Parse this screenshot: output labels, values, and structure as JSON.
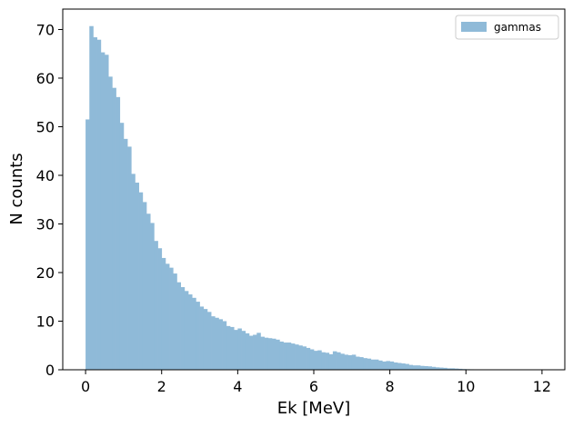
{
  "chart_data": {
    "type": "bar",
    "title": "",
    "xlabel": "Ek [MeV]",
    "ylabel": "N counts",
    "xlim": [
      -0.6,
      12.6
    ],
    "ylim": [
      0,
      74.2
    ],
    "xticks": [
      "0",
      "2",
      "4",
      "6",
      "8",
      "10",
      "12"
    ],
    "yticks": [
      "0",
      "10",
      "20",
      "30",
      "40",
      "50",
      "60",
      "70"
    ],
    "grid": false,
    "legend_position": "top-right",
    "bin_width": 0.1,
    "series": [
      {
        "name": "gammas",
        "color": "#8fbad8",
        "bins_start": 0.0,
        "values": [
          51.5,
          70.7,
          68.4,
          67.9,
          65.3,
          64.8,
          60.3,
          58.0,
          56.1,
          50.8,
          47.5,
          45.9,
          40.3,
          38.5,
          36.5,
          34.5,
          32.1,
          30.2,
          26.5,
          25.0,
          23.0,
          21.8,
          21.0,
          19.8,
          18.0,
          17.0,
          16.2,
          15.5,
          14.8,
          14.0,
          13.0,
          12.5,
          11.9,
          11.0,
          10.7,
          10.4,
          10.0,
          9.0,
          8.8,
          8.2,
          8.5,
          8.0,
          7.5,
          7.0,
          7.2,
          7.6,
          6.8,
          6.6,
          6.5,
          6.4,
          6.2,
          5.8,
          5.6,
          5.6,
          5.4,
          5.2,
          5.0,
          4.8,
          4.5,
          4.2,
          3.9,
          4.0,
          3.6,
          3.5,
          3.2,
          3.8,
          3.6,
          3.3,
          3.1,
          3.0,
          3.1,
          2.7,
          2.6,
          2.4,
          2.3,
          2.1,
          2.1,
          1.9,
          1.7,
          1.8,
          1.7,
          1.5,
          1.4,
          1.3,
          1.2,
          1.0,
          0.9,
          0.9,
          0.8,
          0.75,
          0.7,
          0.6,
          0.5,
          0.45,
          0.4,
          0.3,
          0.3,
          0.25,
          0.2,
          0.15,
          0.12,
          0.1,
          0.08,
          0.06,
          0.05,
          0.04,
          0.03,
          0.02,
          0.02,
          0.01,
          0.01,
          0.01,
          0.01,
          0.01,
          0.01,
          0.0,
          0.01,
          0.0,
          0.0,
          0.0,
          0.01
        ]
      }
    ]
  }
}
